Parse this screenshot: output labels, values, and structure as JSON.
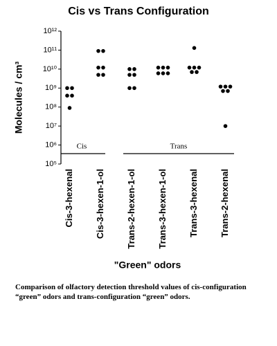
{
  "chart_data": {
    "type": "scatter",
    "title": "Cis vs Trans Configuration",
    "y_label": "Molecules / cm³",
    "x_label": "\"Green\" odors",
    "categories": [
      "Cis-3-hexenal",
      "Cis-3-hexen-1-ol",
      "Trans-2-hexen-1-ol",
      "Trans-3-hexen-1-ol",
      "Trans-3-hexenal",
      "Trans-2-hexenal"
    ],
    "values": [
      [
        1000000000,
        1000000000,
        400000000,
        400000000,
        90000000
      ],
      [
        90000000000,
        90000000000,
        12000000000,
        12000000000,
        5000000000,
        5000000000
      ],
      [
        10000000000,
        10000000000,
        5000000000,
        5000000000,
        1000000000,
        1000000000
      ],
      [
        12000000000,
        12000000000,
        12000000000,
        6000000000,
        6000000000,
        6000000000
      ],
      [
        130000000000,
        12000000000,
        12000000000,
        12000000000,
        7000000000,
        7000000000
      ],
      [
        1200000000,
        1200000000,
        1200000000,
        700000000,
        700000000,
        10000000
      ]
    ],
    "color": "#000000",
    "log_y": true,
    "ylim": [
      100000,
      1000000000000
    ],
    "yticks": [
      {
        "value": 100000,
        "label": "10⁵"
      },
      {
        "value": 1000000,
        "label": "10⁶"
      },
      {
        "value": 10000000,
        "label": "10⁷"
      },
      {
        "value": 100000000,
        "label": "10⁸"
      },
      {
        "value": 1000000000,
        "label": "10⁹"
      },
      {
        "value": 10000000000,
        "label": "10¹⁰"
      },
      {
        "value": 100000000000,
        "label": "10¹¹"
      },
      {
        "value": 1000000000000,
        "label": "10¹²"
      }
    ],
    "annotations": [
      "Cis",
      "Trans"
    ],
    "caption": "Comparison of olfactory detection threshold values of cis-configuration “green” odors and trans-configuration “green” odors."
  }
}
